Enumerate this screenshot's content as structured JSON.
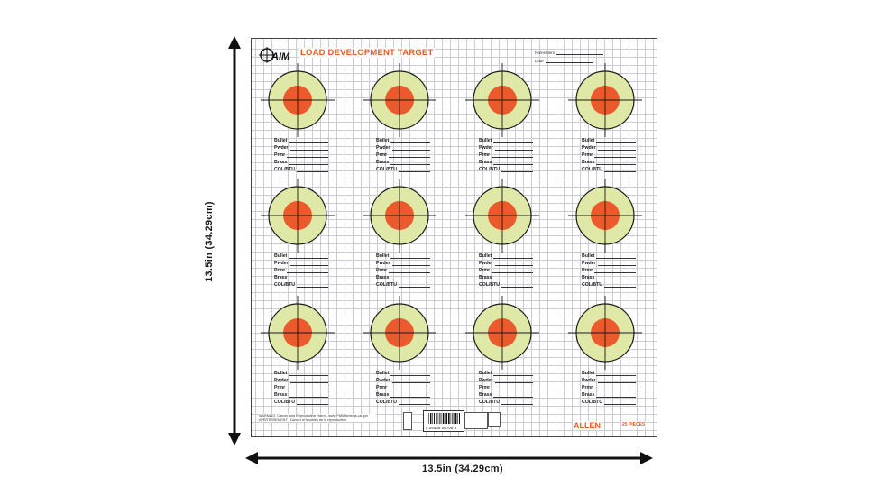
{
  "dimensions": {
    "width_label": "13.5in (34.29cm)",
    "height_label": "13.5in (34.29cm)"
  },
  "sheet": {
    "brand": "AIM",
    "title": "LOAD DEVELOPMENT TARGET",
    "name_label": "Name/Item",
    "date_label": "Date",
    "field_labels": [
      "Bullet",
      "Pwder",
      "Prmr",
      "Brass",
      "COL/BTU"
    ],
    "target_rows": 3,
    "target_cols": 4,
    "colors": {
      "outer_ring": "#dfe8a6",
      "bullseye": "#ea5a2c",
      "accent_text": "#e85a2a",
      "grid": "#c9ccd2"
    },
    "upc_digits": "0 26509 06705 6",
    "maker": "ALLEN",
    "pieces": "25 PIECES",
    "warning_text": "WARNING: Cancer and Reproductive Harm - www.P65Warnings.ca.gov",
    "warning_text_fr": "AVERTISSEMENT : Cancer et troubles de la reproduction"
  }
}
